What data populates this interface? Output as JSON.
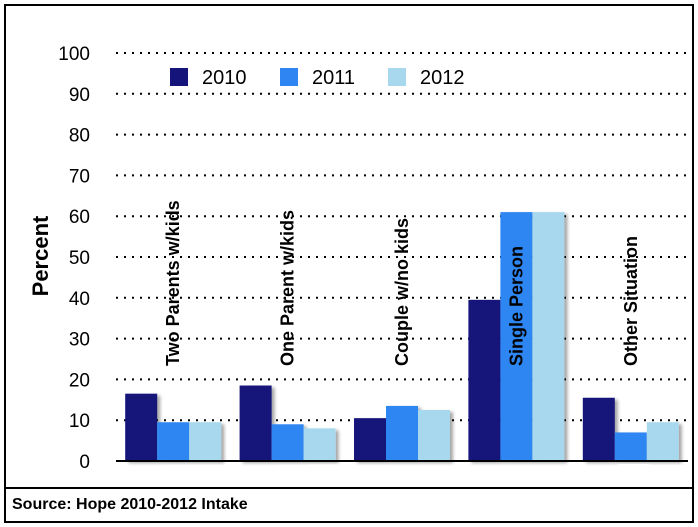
{
  "chart_data": {
    "type": "bar",
    "ylabel": "Percent",
    "ylim": [
      0,
      100
    ],
    "yticks": [
      0,
      10,
      20,
      30,
      40,
      50,
      60,
      70,
      80,
      90,
      100
    ],
    "grid": true,
    "legend_position": "top-left",
    "categories": [
      "Two Parents w/kids",
      "One Parent w/kids",
      "Couple w/no kids",
      "Single Person",
      "Other Situation"
    ],
    "series": [
      {
        "name": "2010",
        "color": "#14147a",
        "values": [
          16.5,
          18.5,
          10.5,
          39.5,
          15.5
        ]
      },
      {
        "name": "2011",
        "color": "#2f86f2",
        "values": [
          9.5,
          9,
          13.5,
          61,
          7
        ]
      },
      {
        "name": "2012",
        "color": "#a8d8ee",
        "values": [
          9.5,
          8,
          12.5,
          61,
          9.5
        ]
      }
    ]
  },
  "source_note": "Source: Hope 2010-2012 Intake"
}
